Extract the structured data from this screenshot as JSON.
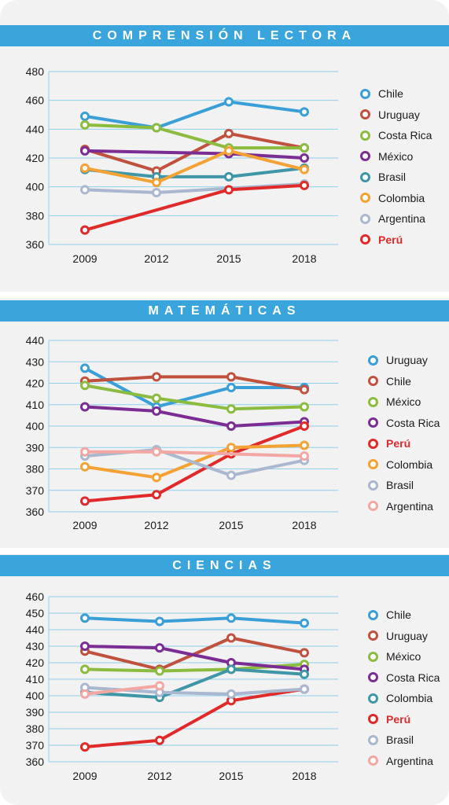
{
  "colors": {
    "banner": "#3aa5dc",
    "panel_bg": "#f2f2f2",
    "grid": "#8ecfee",
    "axis_text": "#1a1a1a"
  },
  "chart_data": [
    {
      "type": "line",
      "title": "COMPRENSIÓN LECTORA",
      "x": [
        "2009",
        "2012",
        "2015",
        "2018"
      ],
      "yticks": [
        360,
        380,
        400,
        420,
        440,
        460,
        480
      ],
      "ylim": [
        360,
        480
      ],
      "grid": true,
      "legend": "right",
      "series": [
        {
          "name": "Chile",
          "color": "#3a9fd6",
          "values": [
            449,
            441,
            459,
            452
          ],
          "bold": false
        },
        {
          "name": "Uruguay",
          "color": "#c0513e",
          "values": [
            426,
            411,
            437,
            427
          ],
          "bold": false
        },
        {
          "name": "Costa Rica",
          "color": "#8cbc3f",
          "values": [
            443,
            441,
            427,
            427
          ],
          "bold": false
        },
        {
          "name": "México",
          "color": "#7b2d93",
          "values": [
            425,
            null,
            423,
            420
          ],
          "bold": false
        },
        {
          "name": "Brasil",
          "color": "#3f96a6",
          "values": [
            412,
            407,
            407,
            413
          ],
          "bold": false
        },
        {
          "name": "Colombia",
          "color": "#f4a234",
          "values": [
            413,
            403,
            425,
            412
          ],
          "bold": false
        },
        {
          "name": "Argentina",
          "color": "#a9b7cf",
          "values": [
            398,
            396,
            null,
            402
          ],
          "bold": false
        },
        {
          "name": "Perú",
          "color": "#e02a2a",
          "values": [
            370,
            null,
            398,
            401
          ],
          "bold": true
        }
      ]
    },
    {
      "type": "line",
      "title": "MATEMÁTICAS",
      "x": [
        "2009",
        "2012",
        "2015",
        "2018"
      ],
      "yticks": [
        360,
        370,
        380,
        390,
        400,
        410,
        420,
        430,
        440
      ],
      "ylim": [
        360,
        440
      ],
      "grid": true,
      "legend": "right",
      "series": [
        {
          "name": "Uruguay",
          "color": "#3a9fd6",
          "values": [
            427,
            409,
            418,
            418
          ],
          "bold": false
        },
        {
          "name": "Chile",
          "color": "#c0513e",
          "values": [
            421,
            423,
            423,
            417
          ],
          "bold": false
        },
        {
          "name": "México",
          "color": "#8cbc3f",
          "values": [
            419,
            413,
            408,
            409
          ],
          "bold": false
        },
        {
          "name": "Costa Rica",
          "color": "#7b2d93",
          "values": [
            409,
            407,
            400,
            402
          ],
          "bold": false
        },
        {
          "name": "Perú",
          "color": "#e02a2a",
          "values": [
            365,
            368,
            387,
            400
          ],
          "bold": true
        },
        {
          "name": "Colombia",
          "color": "#f4a234",
          "values": [
            381,
            376,
            390,
            391
          ],
          "bold": false
        },
        {
          "name": "Brasil",
          "color": "#a9b7cf",
          "values": [
            386,
            389,
            377,
            384
          ],
          "bold": false
        },
        {
          "name": "Argentina",
          "color": "#f3a7a2",
          "values": [
            388,
            388,
            null,
            386
          ],
          "bold": false
        }
      ]
    },
    {
      "type": "line",
      "title": "CIENCIAS",
      "x": [
        "2009",
        "2012",
        "2015",
        "2018"
      ],
      "yticks": [
        360,
        370,
        380,
        390,
        400,
        410,
        420,
        430,
        440,
        450,
        460
      ],
      "ylim": [
        360,
        460
      ],
      "grid": true,
      "legend": "right",
      "series": [
        {
          "name": "Chile",
          "color": "#3a9fd6",
          "values": [
            447,
            445,
            447,
            444
          ],
          "bold": false
        },
        {
          "name": "Uruguay",
          "color": "#c0513e",
          "values": [
            427,
            416,
            435,
            426
          ],
          "bold": false
        },
        {
          "name": "México",
          "color": "#8cbc3f",
          "values": [
            416,
            415,
            416,
            419
          ],
          "bold": false
        },
        {
          "name": "Costa Rica",
          "color": "#7b2d93",
          "values": [
            430,
            429,
            420,
            416
          ],
          "bold": false
        },
        {
          "name": "Colombia",
          "color": "#3f96a6",
          "values": [
            402,
            399,
            416,
            413
          ],
          "bold": false
        },
        {
          "name": "Perú",
          "color": "#e02a2a",
          "values": [
            369,
            373,
            397,
            404
          ],
          "bold": true
        },
        {
          "name": "Brasil",
          "color": "#a9b7cf",
          "values": [
            405,
            402,
            401,
            404
          ],
          "bold": false
        },
        {
          "name": "Argentina",
          "color": "#f3a7a2",
          "values": [
            401,
            406,
            null,
            null
          ],
          "bold": false
        }
      ]
    }
  ]
}
